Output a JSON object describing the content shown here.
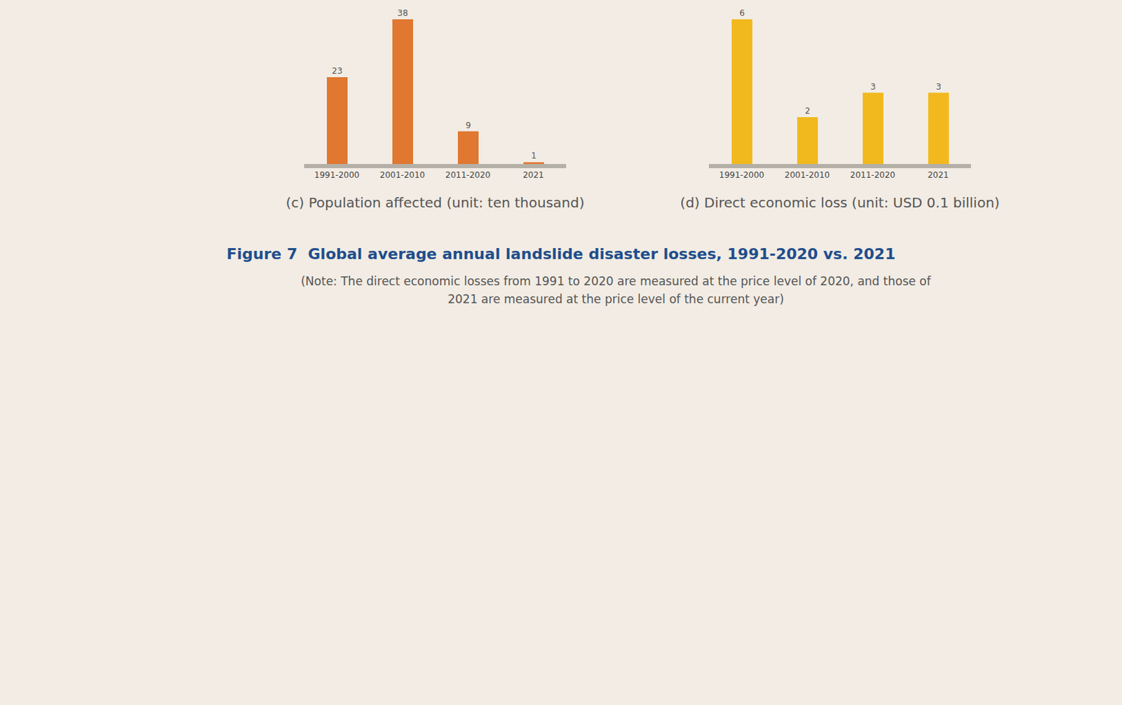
{
  "title": "Figure 7  Global average annual landslide disaster losses, 1991-2020 vs. 2021",
  "note": "(Note: The direct economic losses from 1991 to 2020 are measured at the price level of 2020, and those of 2021 are measured at the price level of the current year)",
  "chart_data": [
    {
      "type": "bar",
      "title": "(c) Population affected (unit: ten thousand)",
      "categories": [
        "1991-2000",
        "2001-2010",
        "2011-2020",
        "2021"
      ],
      "values": [
        23,
        38,
        9,
        1
      ],
      "color": "#e07832",
      "data_labels": true,
      "tick_labels": "x"
    },
    {
      "type": "bar",
      "title": "(d) Direct economic loss (unit: USD 0.1 billion)",
      "categories": [
        "1991-2000",
        "2001-2010",
        "2011-2020",
        "2021"
      ],
      "values": [
        6,
        2,
        3,
        3
      ],
      "color": "#f2b91e",
      "data_labels": true,
      "tick_labels": "x"
    }
  ]
}
